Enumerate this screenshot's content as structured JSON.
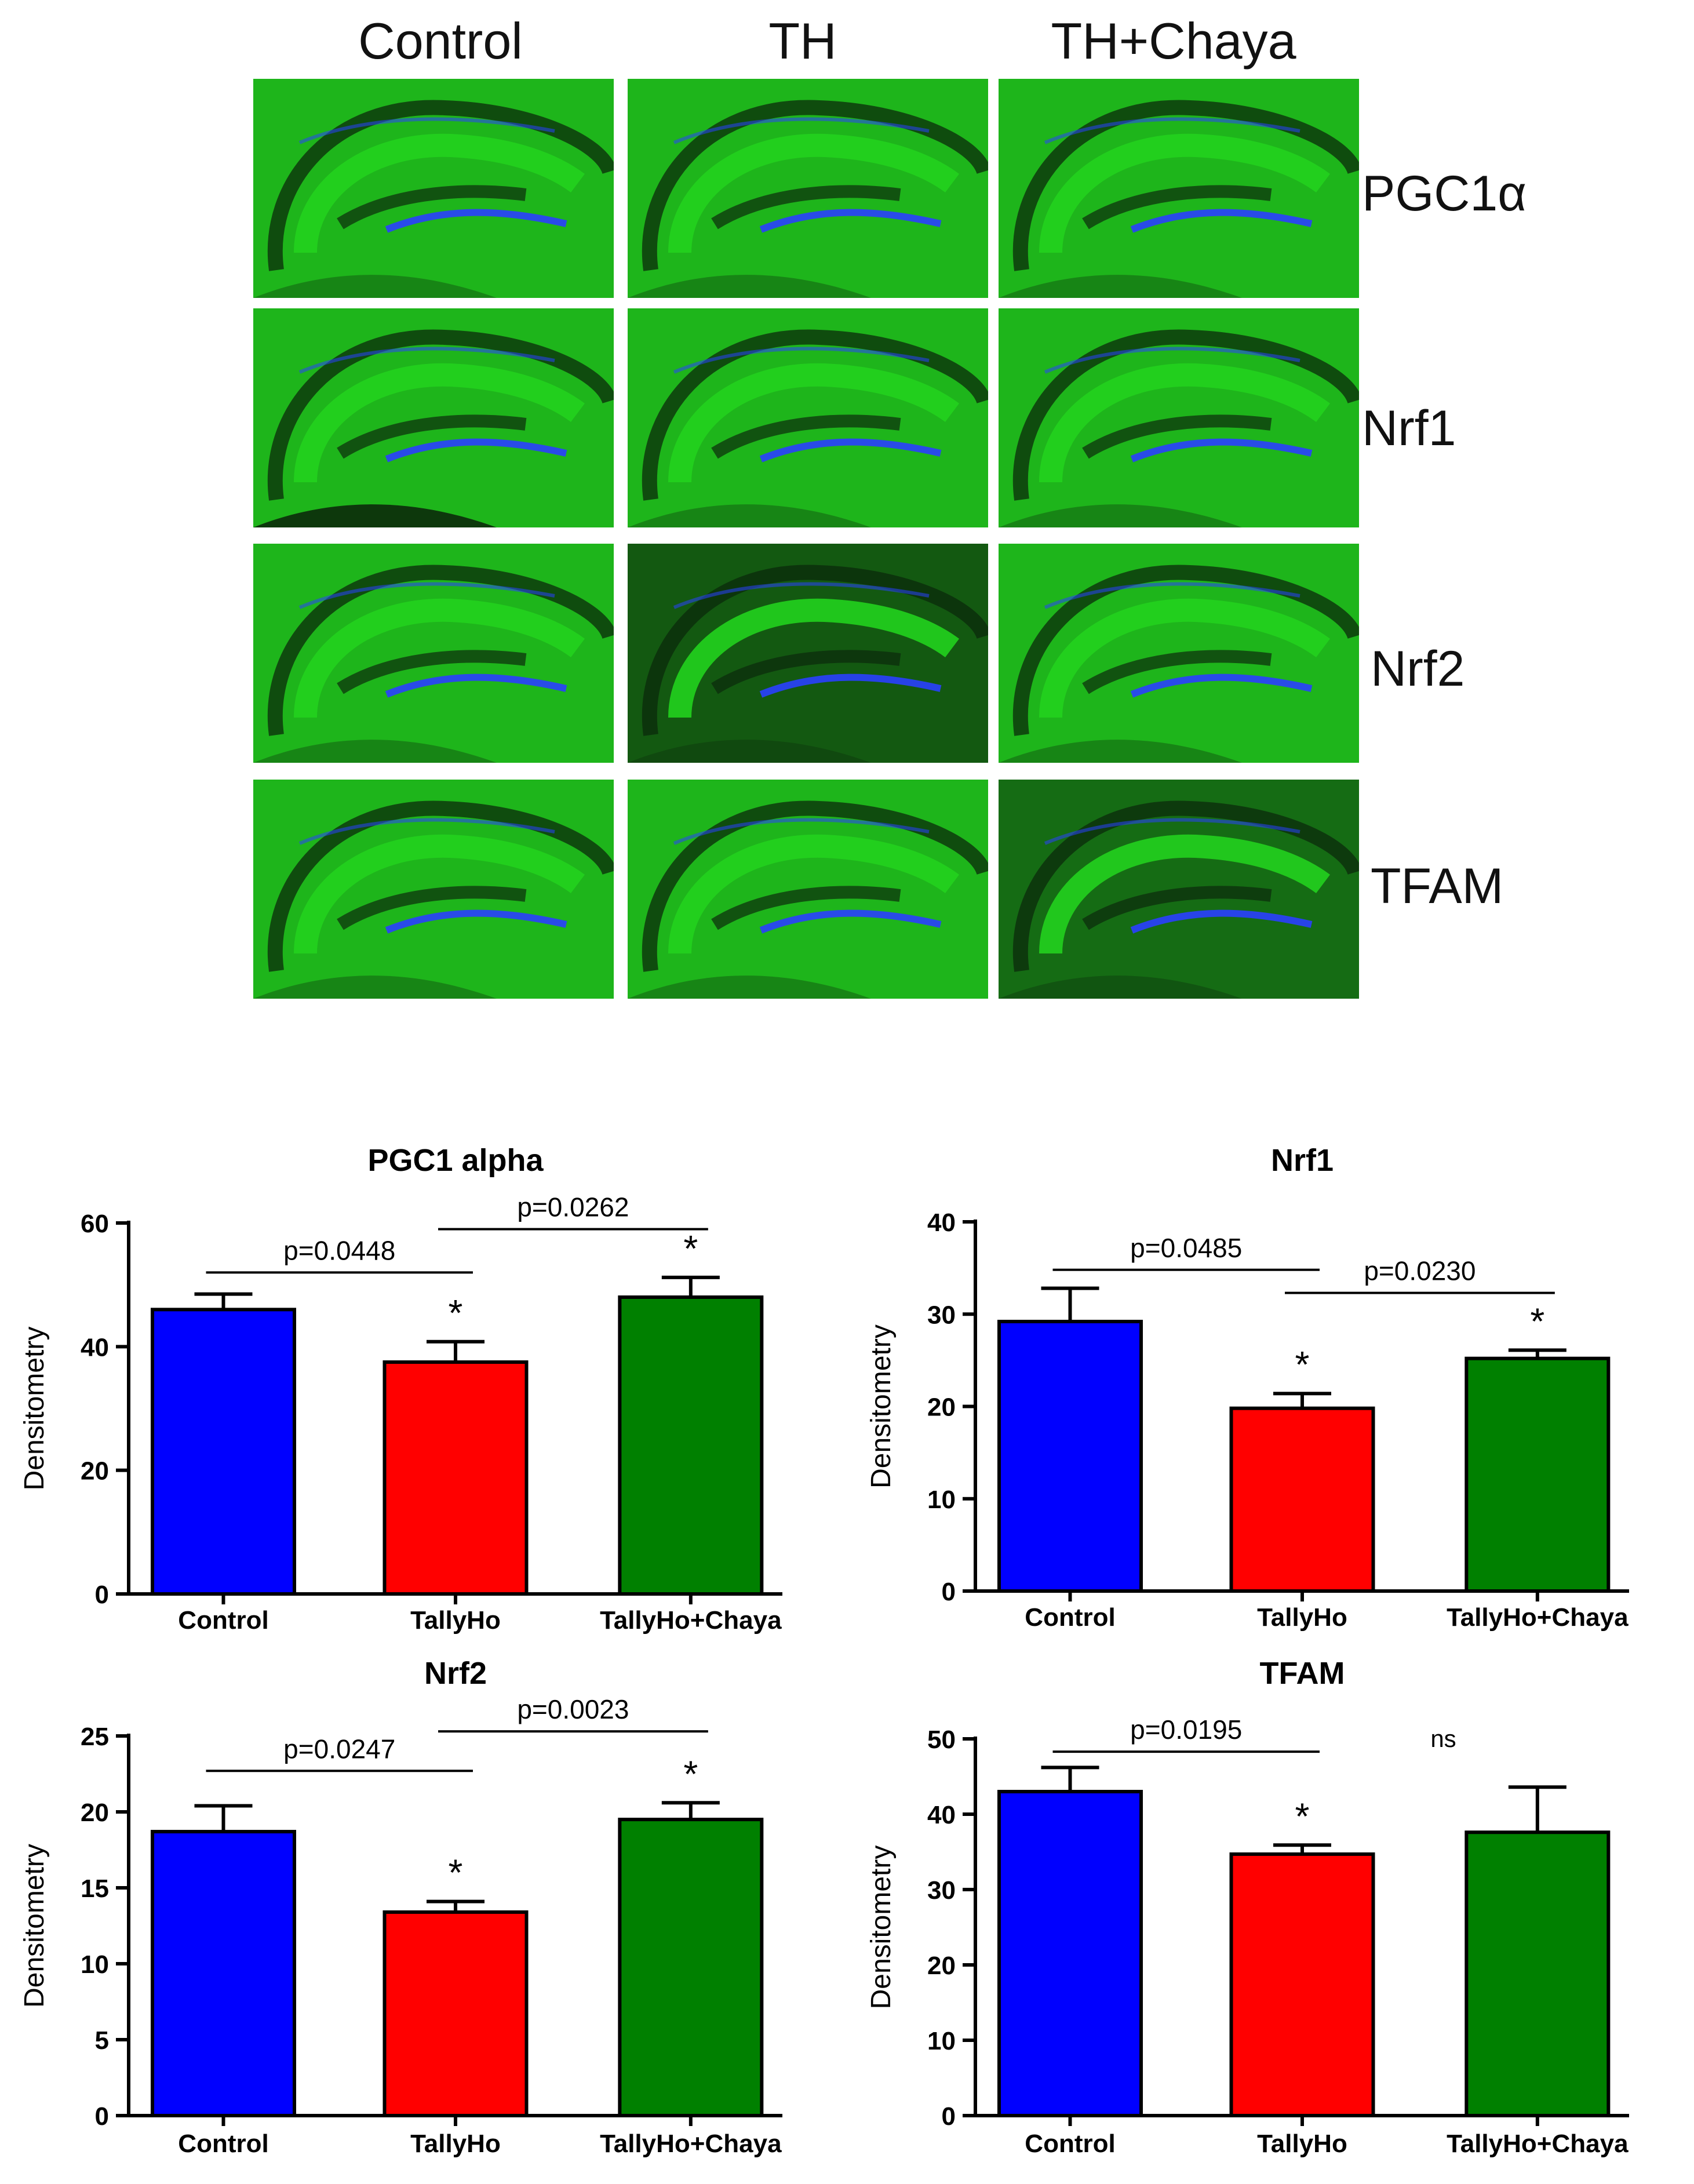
{
  "micrograph_figure": {
    "column_headers": [
      "Control",
      "TH",
      "TH+Chaya"
    ],
    "row_labels": [
      "PGC1α",
      "Nrf1",
      "Nrf2",
      "TFAM"
    ],
    "stain_color": "#22d11e",
    "nuclear_color": "#2a3fff"
  },
  "chart_data": [
    {
      "type": "bar",
      "title": "PGC1 alpha",
      "ylabel": "Densitometry",
      "xlabel": "",
      "categories": [
        "Control",
        "TallyHo",
        "TallyHo+Chaya"
      ],
      "values": [
        46,
        37.5,
        48
      ],
      "errors": [
        2.5,
        3.3,
        3.2
      ],
      "colors": [
        "#0000ff",
        "#ff0000",
        "#008000"
      ],
      "ylim": [
        0,
        60
      ],
      "yticks": [
        0,
        20,
        40,
        60
      ],
      "significance_marks": [
        "",
        "*",
        "*"
      ],
      "brackets": [
        {
          "from": 0,
          "to": 1,
          "label": "p=0.0448",
          "y": 52
        },
        {
          "from": 1,
          "to": 2,
          "label": "p=0.0262",
          "y": 59
        }
      ]
    },
    {
      "type": "bar",
      "title": "Nrf1",
      "ylabel": "Densitometry",
      "xlabel": "",
      "categories": [
        "Control",
        "TallyHo",
        "TallyHo+Chaya"
      ],
      "values": [
        29.2,
        19.8,
        25.2
      ],
      "errors": [
        3.6,
        1.6,
        0.9
      ],
      "colors": [
        "#0000ff",
        "#ff0000",
        "#008000"
      ],
      "ylim": [
        0,
        40
      ],
      "yticks": [
        0,
        10,
        20,
        30,
        40
      ],
      "significance_marks": [
        "",
        "*",
        "*"
      ],
      "brackets": [
        {
          "from": 0,
          "to": 1,
          "label": "p=0.0485",
          "y": 34.8
        },
        {
          "from": 1,
          "to": 2,
          "label": "p=0.0230",
          "y": 32.3
        }
      ]
    },
    {
      "type": "bar",
      "title": "Nrf2",
      "ylabel": "Densitometry",
      "xlabel": "",
      "categories": [
        "Control",
        "TallyHo",
        "TallyHo+Chaya"
      ],
      "values": [
        18.7,
        13.4,
        19.5
      ],
      "errors": [
        1.7,
        0.7,
        1.1
      ],
      "colors": [
        "#0000ff",
        "#ff0000",
        "#008000"
      ],
      "ylim": [
        0,
        25
      ],
      "yticks": [
        0,
        5,
        10,
        15,
        20,
        25
      ],
      "significance_marks": [
        "",
        "*",
        "*"
      ],
      "brackets": [
        {
          "from": 0,
          "to": 1,
          "label": "p=0.0247",
          "y": 22.7
        },
        {
          "from": 1,
          "to": 2,
          "label": "p=0.0023",
          "y": 25.3
        }
      ]
    },
    {
      "type": "bar",
      "title": "TFAM",
      "ylabel": "Densitometry",
      "xlabel": "",
      "categories": [
        "Control",
        "TallyHo",
        "TallyHo+Chaya"
      ],
      "values": [
        43,
        34.7,
        37.6
      ],
      "errors": [
        3.2,
        1.2,
        6.0
      ],
      "colors": [
        "#0000ff",
        "#ff0000",
        "#008000"
      ],
      "ylim": [
        0,
        50
      ],
      "yticks": [
        0,
        10,
        20,
        30,
        40,
        50
      ],
      "significance_marks": [
        "",
        "*",
        ""
      ],
      "brackets": [
        {
          "from": 0,
          "to": 1,
          "label": "p=0.0195",
          "y": 48.3
        }
      ],
      "annotations": [
        {
          "text": "ns",
          "x": 1.6,
          "y": 50
        }
      ]
    }
  ]
}
